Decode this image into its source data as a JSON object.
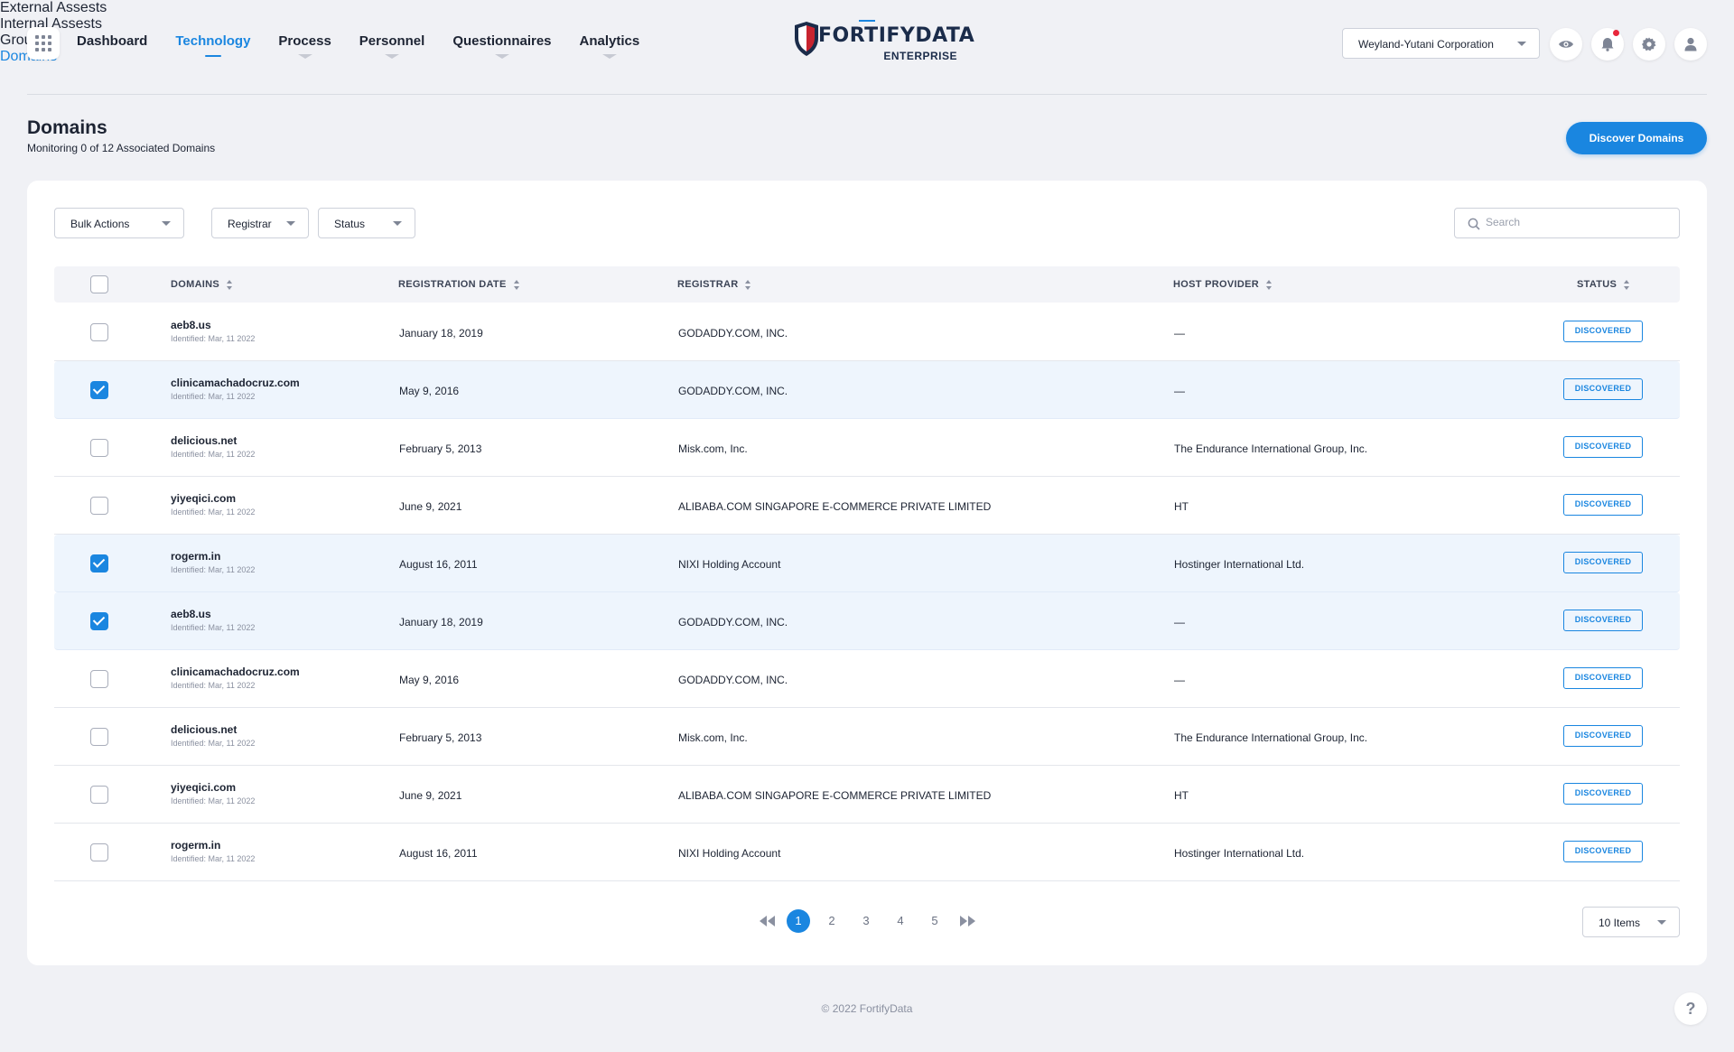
{
  "nav": {
    "items": [
      {
        "label": "Dashboard",
        "active": false,
        "has_sub": false
      },
      {
        "label": "Technology",
        "active": true,
        "has_sub": false
      },
      {
        "label": "Process",
        "active": false,
        "has_sub": true
      },
      {
        "label": "Personnel",
        "active": false,
        "has_sub": true
      },
      {
        "label": "Questionnaires",
        "active": false,
        "has_sub": true
      },
      {
        "label": "Analytics",
        "active": false,
        "has_sub": true
      }
    ]
  },
  "logo": {
    "name": "FORTIFYDATA",
    "sub": "ENTERPRISE"
  },
  "org_select": {
    "value": "Weyland-Yutani Corporation"
  },
  "header_icons": [
    "eye-icon",
    "bell-icon",
    "gear-icon",
    "user-icon"
  ],
  "page": {
    "title": "Domains",
    "subtitle": "Monitoring 0 of 12 Associated Domains"
  },
  "sub_nav": [
    {
      "label": "External Assests",
      "active": false
    },
    {
      "label": "Internal Assests",
      "active": false
    },
    {
      "label": "Groups",
      "active": false
    },
    {
      "label": "Domains",
      "active": true
    }
  ],
  "discover_button": "Discover Domains",
  "filters": {
    "bulk_actions": "Bulk Actions",
    "registrar": "Registrar",
    "status": "Status",
    "search_placeholder": "Search"
  },
  "table": {
    "columns": [
      "DOMAINS",
      "REGISTRATION DATE",
      "REGISTRAR",
      "HOST PROVIDER",
      "STATUS"
    ],
    "rows": [
      {
        "domain": "aeb8.us",
        "identified": "Identified: Mar, 11 2022",
        "reg_date": "January 18, 2019",
        "registrar": "GODADDY.COM, INC.",
        "host": "—",
        "status": "DISCOVERED",
        "checked": false
      },
      {
        "domain": "clinicamachadocruz.com",
        "identified": "Identified: Mar, 11 2022",
        "reg_date": "May 9, 2016",
        "registrar": "GODADDY.COM, INC.",
        "host": "—",
        "status": "DISCOVERED",
        "checked": true
      },
      {
        "domain": "delicious.net",
        "identified": "Identified: Mar, 11 2022",
        "reg_date": "February 5, 2013",
        "registrar": "Misk.com, Inc.",
        "host": "The Endurance International Group, Inc.",
        "status": "DISCOVERED",
        "checked": false
      },
      {
        "domain": "yiyeqici.com",
        "identified": "Identified: Mar, 11 2022",
        "reg_date": "June 9, 2021",
        "registrar": "ALIBABA.COM SINGAPORE E-COMMERCE PRIVATE LIMITED",
        "host": "HT",
        "status": "DISCOVERED",
        "checked": false
      },
      {
        "domain": "rogerm.in",
        "identified": "Identified: Mar, 11 2022",
        "reg_date": "August 16, 2011",
        "registrar": "NIXI Holding Account",
        "host": "Hostinger International Ltd.",
        "status": "DISCOVERED",
        "checked": true
      },
      {
        "domain": "aeb8.us",
        "identified": "Identified: Mar, 11 2022",
        "reg_date": "January 18, 2019",
        "registrar": "GODADDY.COM, INC.",
        "host": "—",
        "status": "DISCOVERED",
        "checked": true
      },
      {
        "domain": "clinicamachadocruz.com",
        "identified": "Identified: Mar, 11 2022",
        "reg_date": "May 9, 2016",
        "registrar": "GODADDY.COM, INC.",
        "host": "—",
        "status": "DISCOVERED",
        "checked": false
      },
      {
        "domain": "delicious.net",
        "identified": "Identified: Mar, 11 2022",
        "reg_date": "February 5, 2013",
        "registrar": "Misk.com, Inc.",
        "host": "The Endurance International Group, Inc.",
        "status": "DISCOVERED",
        "checked": false
      },
      {
        "domain": "yiyeqici.com",
        "identified": "Identified: Mar, 11 2022",
        "reg_date": "June 9, 2021",
        "registrar": "ALIBABA.COM SINGAPORE E-COMMERCE PRIVATE LIMITED",
        "host": "HT",
        "status": "DISCOVERED",
        "checked": false
      },
      {
        "domain": "rogerm.in",
        "identified": "Identified: Mar, 11 2022",
        "reg_date": "August 16, 2011",
        "registrar": "NIXI Holding Account",
        "host": "Hostinger International Ltd.",
        "status": "DISCOVERED",
        "checked": false
      }
    ]
  },
  "pagination": {
    "pages": [
      "1",
      "2",
      "3",
      "4",
      "5"
    ],
    "current": "1",
    "items_per_page": "10 Items"
  },
  "footer": "© 2022 FortifyData",
  "help": "?",
  "colors": {
    "accent": "#1a86e0",
    "notification": "#e8273b",
    "background": "#f0f1f5"
  }
}
